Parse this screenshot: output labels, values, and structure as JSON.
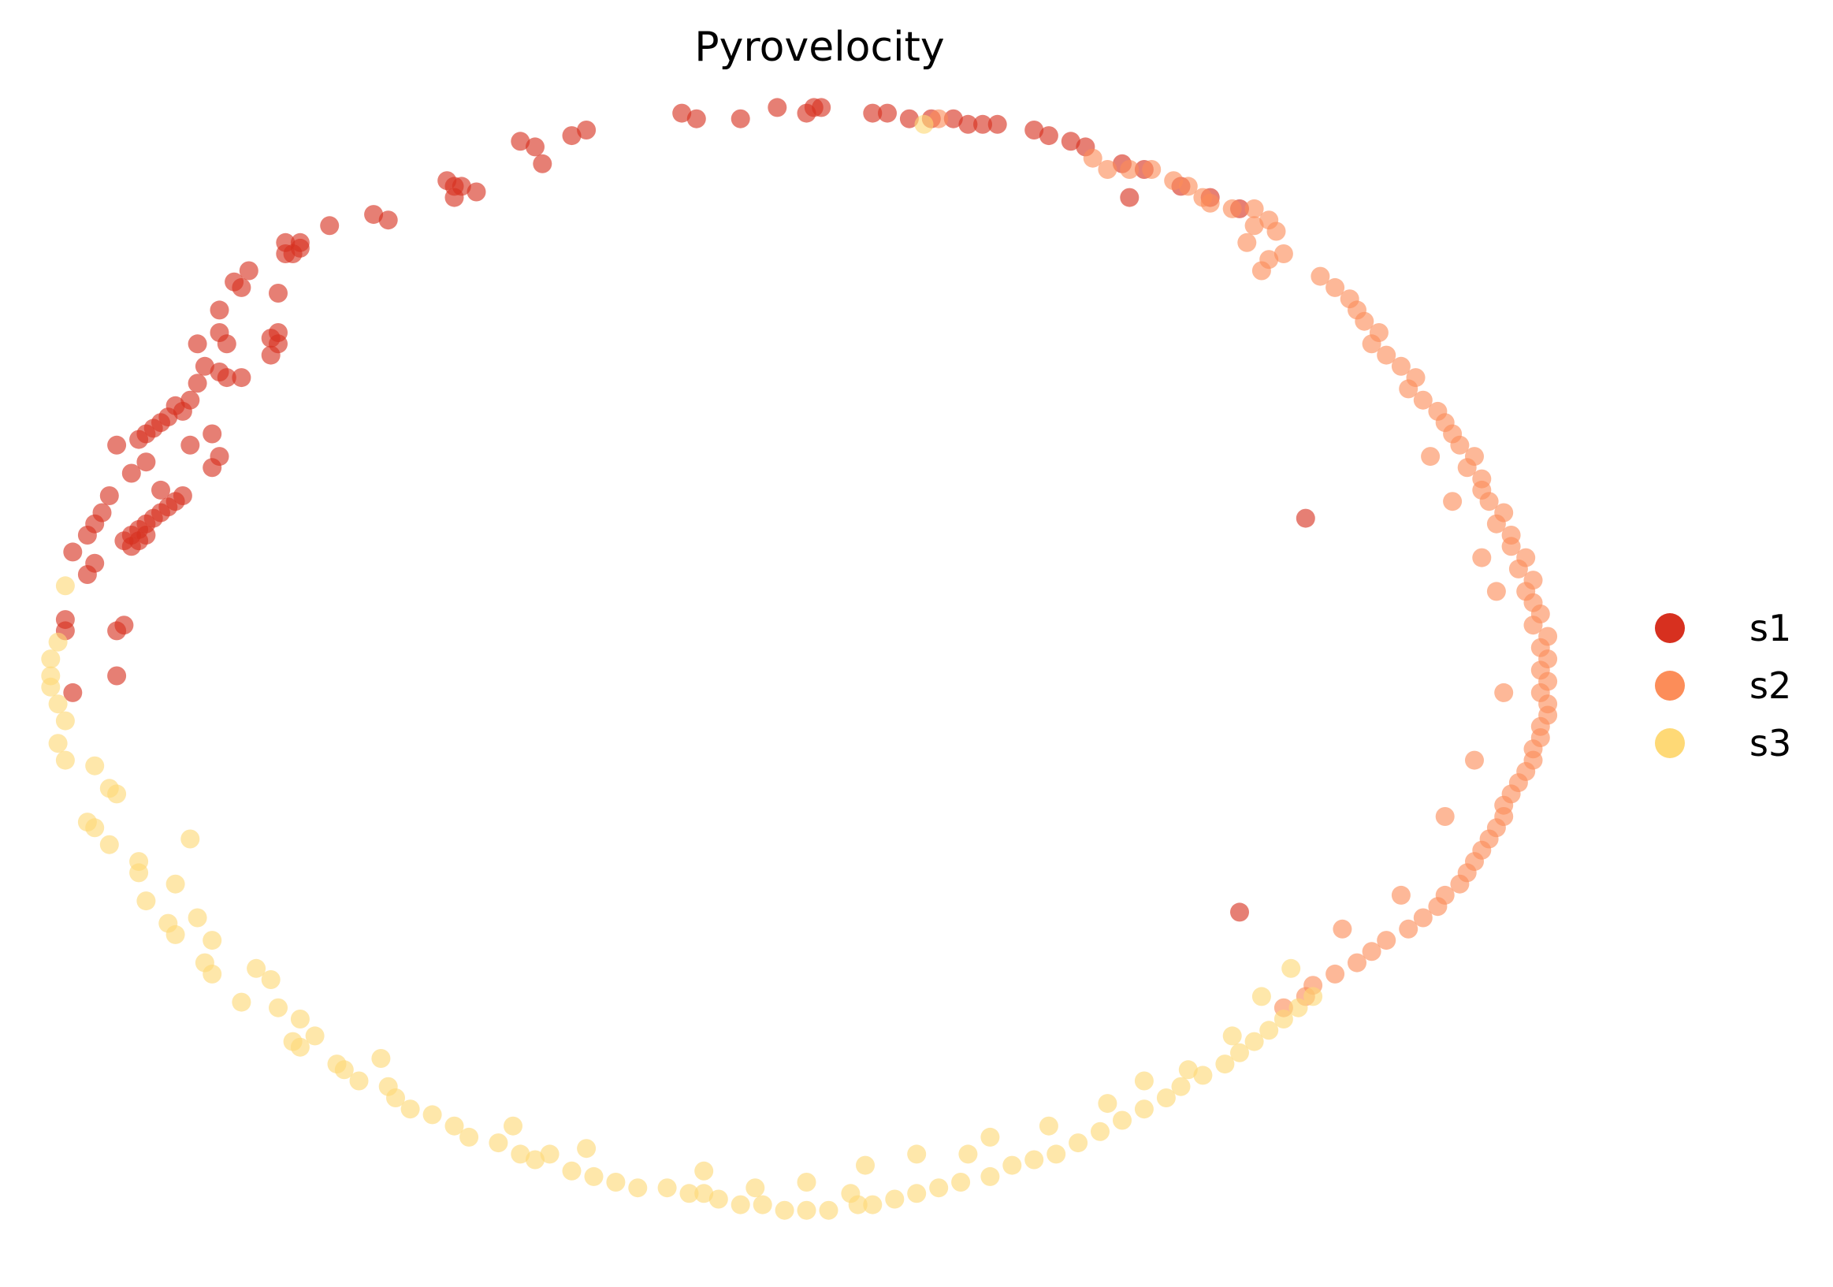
{
  "chart_data": {
    "type": "scatter",
    "title": "Pyrovelocity",
    "xlabel": "",
    "ylabel": "",
    "axes_visible": false,
    "grid": false,
    "legend_position": "right",
    "xlim": [
      -1.03,
      1.08
    ],
    "ylim": [
      -1.05,
      1.03
    ],
    "series": [
      {
        "name": "s1",
        "color": "#d7301f",
        "points": [
          [
            -0.16,
            0.99
          ],
          [
            -0.14,
            0.98
          ],
          [
            -0.08,
            0.98
          ],
          [
            -0.03,
            1.0
          ],
          [
            0.02,
            1.0
          ],
          [
            0.01,
            0.99
          ],
          [
            0.03,
            1.0
          ],
          [
            -0.38,
            0.94
          ],
          [
            -0.31,
            0.95
          ],
          [
            -0.29,
            0.96
          ],
          [
            -0.36,
            0.93
          ],
          [
            -0.35,
            0.9
          ],
          [
            0.1,
            0.99
          ],
          [
            0.12,
            0.99
          ],
          [
            0.15,
            0.98
          ],
          [
            0.18,
            0.98
          ],
          [
            0.21,
            0.98
          ],
          [
            0.23,
            0.97
          ],
          [
            0.25,
            0.97
          ],
          [
            0.27,
            0.97
          ],
          [
            0.32,
            0.96
          ],
          [
            0.34,
            0.95
          ],
          [
            0.37,
            0.94
          ],
          [
            0.39,
            0.93
          ],
          [
            0.44,
            0.9
          ],
          [
            0.47,
            0.89
          ],
          [
            0.52,
            0.86
          ],
          [
            0.56,
            0.84
          ],
          [
            0.6,
            0.82
          ],
          [
            -0.48,
            0.87
          ],
          [
            -0.47,
            0.86
          ],
          [
            -0.46,
            0.86
          ],
          [
            -0.44,
            0.85
          ],
          [
            -0.47,
            0.84
          ],
          [
            -0.58,
            0.81
          ],
          [
            -0.56,
            0.8
          ],
          [
            -0.64,
            0.79
          ],
          [
            -0.68,
            0.76
          ],
          [
            -0.68,
            0.75
          ],
          [
            -0.69,
            0.74
          ],
          [
            -0.7,
            0.76
          ],
          [
            -0.7,
            0.74
          ],
          [
            -0.75,
            0.71
          ],
          [
            -0.77,
            0.69
          ],
          [
            -0.76,
            0.68
          ],
          [
            -0.71,
            0.67
          ],
          [
            -0.79,
            0.64
          ],
          [
            -0.79,
            0.6
          ],
          [
            -0.78,
            0.58
          ],
          [
            -0.82,
            0.58
          ],
          [
            -0.71,
            0.6
          ],
          [
            -0.72,
            0.59
          ],
          [
            -0.71,
            0.58
          ],
          [
            -0.72,
            0.56
          ],
          [
            -0.81,
            0.54
          ],
          [
            -0.79,
            0.53
          ],
          [
            -0.76,
            0.52
          ],
          [
            -0.78,
            0.52
          ],
          [
            -0.82,
            0.51
          ],
          [
            -0.83,
            0.48
          ],
          [
            -0.84,
            0.46
          ],
          [
            -0.86,
            0.45
          ],
          [
            -0.85,
            0.47
          ],
          [
            -0.87,
            0.44
          ],
          [
            -0.88,
            0.43
          ],
          [
            -0.89,
            0.42
          ],
          [
            -0.9,
            0.41
          ],
          [
            -0.83,
            0.4
          ],
          [
            -0.8,
            0.42
          ],
          [
            -0.79,
            0.38
          ],
          [
            -0.8,
            0.36
          ],
          [
            -0.89,
            0.37
          ],
          [
            -0.93,
            0.4
          ],
          [
            -0.91,
            0.35
          ],
          [
            -0.87,
            0.32
          ],
          [
            -0.94,
            0.31
          ],
          [
            -0.95,
            0.28
          ],
          [
            -0.96,
            0.26
          ],
          [
            -0.97,
            0.24
          ],
          [
            -0.99,
            0.21
          ],
          [
            -0.96,
            0.19
          ],
          [
            -0.97,
            0.17
          ],
          [
            -0.92,
            0.23
          ],
          [
            -0.91,
            0.24
          ],
          [
            -0.9,
            0.25
          ],
          [
            -0.89,
            0.26
          ],
          [
            -0.88,
            0.27
          ],
          [
            -0.87,
            0.28
          ],
          [
            -0.86,
            0.29
          ],
          [
            -0.85,
            0.3
          ],
          [
            -0.84,
            0.31
          ],
          [
            -0.91,
            0.22
          ],
          [
            -0.9,
            0.23
          ],
          [
            -0.89,
            0.24
          ],
          [
            -1.0,
            0.09
          ],
          [
            -1.0,
            0.07
          ],
          [
            -0.93,
            0.07
          ],
          [
            -0.92,
            0.08
          ],
          [
            -0.93,
            -0.01
          ],
          [
            -0.99,
            -0.04
          ],
          [
            0.45,
            0.84
          ],
          [
            0.69,
            0.27
          ],
          [
            0.6,
            -0.43
          ]
        ]
      },
      {
        "name": "s2",
        "color": "#fc8d59",
        "points": [
          [
            0.19,
            0.98
          ],
          [
            0.4,
            0.91
          ],
          [
            0.42,
            0.89
          ],
          [
            0.45,
            0.89
          ],
          [
            0.48,
            0.89
          ],
          [
            0.51,
            0.87
          ],
          [
            0.53,
            0.86
          ],
          [
            0.55,
            0.84
          ],
          [
            0.56,
            0.83
          ],
          [
            0.59,
            0.82
          ],
          [
            0.62,
            0.82
          ],
          [
            0.64,
            0.8
          ],
          [
            0.62,
            0.79
          ],
          [
            0.65,
            0.78
          ],
          [
            0.61,
            0.76
          ],
          [
            0.66,
            0.74
          ],
          [
            0.64,
            0.73
          ],
          [
            0.63,
            0.71
          ],
          [
            0.71,
            0.7
          ],
          [
            0.73,
            0.68
          ],
          [
            0.75,
            0.66
          ],
          [
            0.76,
            0.64
          ],
          [
            0.77,
            0.62
          ],
          [
            0.79,
            0.6
          ],
          [
            0.78,
            0.58
          ],
          [
            0.8,
            0.56
          ],
          [
            0.82,
            0.54
          ],
          [
            0.84,
            0.52
          ],
          [
            0.83,
            0.5
          ],
          [
            0.85,
            0.48
          ],
          [
            0.87,
            0.46
          ],
          [
            0.88,
            0.44
          ],
          [
            0.89,
            0.42
          ],
          [
            0.9,
            0.4
          ],
          [
            0.92,
            0.38
          ],
          [
            0.91,
            0.36
          ],
          [
            0.93,
            0.34
          ],
          [
            0.93,
            0.32
          ],
          [
            0.94,
            0.3
          ],
          [
            0.96,
            0.28
          ],
          [
            0.95,
            0.26
          ],
          [
            0.97,
            0.24
          ],
          [
            0.97,
            0.22
          ],
          [
            0.99,
            0.2
          ],
          [
            0.98,
            0.18
          ],
          [
            1.0,
            0.16
          ],
          [
            0.99,
            0.14
          ],
          [
            1.0,
            0.12
          ],
          [
            1.01,
            0.1
          ],
          [
            1.0,
            0.08
          ],
          [
            1.02,
            0.06
          ],
          [
            1.01,
            0.04
          ],
          [
            1.02,
            0.02
          ],
          [
            1.01,
            0.0
          ],
          [
            1.02,
            -0.02
          ],
          [
            1.01,
            -0.04
          ],
          [
            1.02,
            -0.06
          ],
          [
            1.02,
            -0.08
          ],
          [
            1.01,
            -0.1
          ],
          [
            1.01,
            -0.12
          ],
          [
            1.0,
            -0.14
          ],
          [
            1.0,
            -0.16
          ],
          [
            0.99,
            -0.18
          ],
          [
            0.98,
            -0.2
          ],
          [
            0.97,
            -0.22
          ],
          [
            0.96,
            -0.24
          ],
          [
            0.96,
            -0.26
          ],
          [
            0.95,
            -0.28
          ],
          [
            0.94,
            -0.3
          ],
          [
            0.93,
            -0.32
          ],
          [
            0.92,
            -0.34
          ],
          [
            0.91,
            -0.36
          ],
          [
            0.9,
            -0.38
          ],
          [
            0.88,
            -0.4
          ],
          [
            0.87,
            -0.42
          ],
          [
            0.85,
            -0.44
          ],
          [
            0.83,
            -0.46
          ],
          [
            0.8,
            -0.48
          ],
          [
            0.78,
            -0.5
          ],
          [
            0.76,
            -0.52
          ],
          [
            0.73,
            -0.54
          ],
          [
            0.7,
            -0.56
          ],
          [
            0.86,
            0.38
          ],
          [
            0.89,
            0.3
          ],
          [
            0.93,
            0.2
          ],
          [
            0.95,
            0.14
          ],
          [
            0.96,
            -0.04
          ],
          [
            0.92,
            -0.16
          ],
          [
            0.88,
            -0.26
          ],
          [
            0.82,
            -0.4
          ],
          [
            0.74,
            -0.46
          ],
          [
            0.69,
            -0.58
          ],
          [
            0.66,
            -0.6
          ]
        ]
      },
      {
        "name": "s3",
        "color": "#fed976",
        "points": [
          [
            0.17,
            0.97
          ],
          [
            -1.0,
            0.15
          ],
          [
            -1.01,
            0.05
          ],
          [
            -1.02,
            0.02
          ],
          [
            -1.02,
            -0.01
          ],
          [
            -1.02,
            -0.03
          ],
          [
            -1.01,
            -0.06
          ],
          [
            -1.0,
            -0.09
          ],
          [
            -1.01,
            -0.13
          ],
          [
            -1.0,
            -0.16
          ],
          [
            -0.96,
            -0.17
          ],
          [
            -0.94,
            -0.21
          ],
          [
            -0.93,
            -0.22
          ],
          [
            -0.97,
            -0.27
          ],
          [
            -0.96,
            -0.28
          ],
          [
            -0.94,
            -0.31
          ],
          [
            -0.9,
            -0.34
          ],
          [
            -0.9,
            -0.36
          ],
          [
            -0.89,
            -0.41
          ],
          [
            -0.83,
            -0.3
          ],
          [
            -0.86,
            -0.45
          ],
          [
            -0.85,
            -0.47
          ],
          [
            -0.82,
            -0.44
          ],
          [
            -0.8,
            -0.48
          ],
          [
            -0.81,
            -0.52
          ],
          [
            -0.8,
            -0.54
          ],
          [
            -0.74,
            -0.53
          ],
          [
            -0.72,
            -0.55
          ],
          [
            -0.71,
            -0.6
          ],
          [
            -0.68,
            -0.62
          ],
          [
            -0.69,
            -0.66
          ],
          [
            -0.68,
            -0.67
          ],
          [
            -0.66,
            -0.65
          ],
          [
            -0.63,
            -0.7
          ],
          [
            -0.62,
            -0.71
          ],
          [
            -0.6,
            -0.73
          ],
          [
            -0.56,
            -0.74
          ],
          [
            -0.55,
            -0.76
          ],
          [
            -0.53,
            -0.78
          ],
          [
            -0.5,
            -0.79
          ],
          [
            -0.47,
            -0.81
          ],
          [
            -0.45,
            -0.83
          ],
          [
            -0.41,
            -0.84
          ],
          [
            -0.38,
            -0.86
          ],
          [
            -0.36,
            -0.87
          ],
          [
            -0.31,
            -0.89
          ],
          [
            -0.28,
            -0.9
          ],
          [
            -0.25,
            -0.91
          ],
          [
            -0.22,
            -0.92
          ],
          [
            -0.18,
            -0.92
          ],
          [
            -0.15,
            -0.93
          ],
          [
            -0.11,
            -0.94
          ],
          [
            -0.08,
            -0.95
          ],
          [
            -0.05,
            -0.95
          ],
          [
            -0.02,
            -0.96
          ],
          [
            0.01,
            -0.96
          ],
          [
            0.04,
            -0.96
          ],
          [
            0.08,
            -0.95
          ],
          [
            0.1,
            -0.95
          ],
          [
            0.13,
            -0.94
          ],
          [
            0.16,
            -0.93
          ],
          [
            0.19,
            -0.92
          ],
          [
            0.22,
            -0.91
          ],
          [
            0.26,
            -0.9
          ],
          [
            0.29,
            -0.88
          ],
          [
            0.32,
            -0.87
          ],
          [
            0.35,
            -0.86
          ],
          [
            0.38,
            -0.84
          ],
          [
            0.41,
            -0.82
          ],
          [
            0.44,
            -0.8
          ],
          [
            0.47,
            -0.78
          ],
          [
            0.5,
            -0.76
          ],
          [
            0.52,
            -0.74
          ],
          [
            0.55,
            -0.72
          ],
          [
            0.58,
            -0.7
          ],
          [
            0.6,
            -0.68
          ],
          [
            0.62,
            -0.66
          ],
          [
            0.64,
            -0.64
          ],
          [
            0.66,
            -0.62
          ],
          [
            0.68,
            -0.6
          ],
          [
            0.7,
            -0.58
          ],
          [
            -0.34,
            -0.86
          ],
          [
            -0.29,
            -0.85
          ],
          [
            -0.13,
            -0.89
          ],
          [
            -0.06,
            -0.92
          ],
          [
            0.01,
            -0.91
          ],
          [
            0.09,
            -0.88
          ],
          [
            0.16,
            -0.86
          ],
          [
            0.26,
            -0.83
          ],
          [
            0.34,
            -0.81
          ],
          [
            0.42,
            -0.77
          ],
          [
            0.47,
            -0.73
          ],
          [
            0.53,
            -0.71
          ],
          [
            0.59,
            -0.65
          ],
          [
            0.63,
            -0.58
          ],
          [
            0.67,
            -0.53
          ],
          [
            -0.85,
            -0.38
          ],
          [
            -0.76,
            -0.59
          ],
          [
            -0.57,
            -0.69
          ],
          [
            -0.39,
            -0.81
          ],
          [
            -0.13,
            -0.93
          ],
          [
            0.07,
            -0.93
          ],
          [
            0.23,
            -0.86
          ]
        ]
      }
    ]
  }
}
